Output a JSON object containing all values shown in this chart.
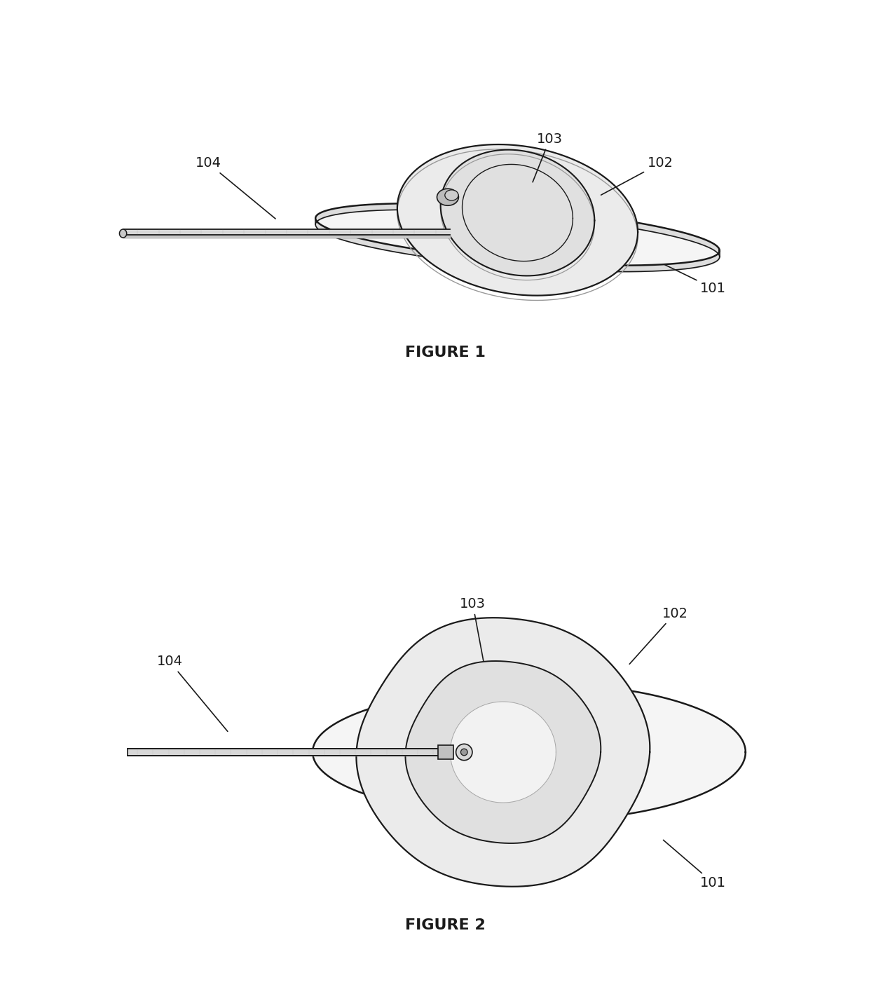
{
  "bg_color": "#ffffff",
  "line_color": "#1a1a1a",
  "fill_outer": "#f5f5f5",
  "fill_mid": "#ebebeb",
  "fill_inner": "#e0e0e0",
  "fill_handle": "#d8d8d8",
  "gray_line": "#999999",
  "fig1_caption": "FIGURE 1",
  "fig2_caption": "FIGURE 2",
  "label_101": "101",
  "label_102": "102",
  "label_103": "103",
  "label_104": "104",
  "font_size_label": 14,
  "font_size_caption": 16,
  "caption_fontweight": "bold",
  "fig1_xlim": [
    0,
    14
  ],
  "fig1_ylim": [
    0,
    5
  ],
  "fig2_xlim": [
    0,
    14
  ],
  "fig2_ylim": [
    0,
    8
  ]
}
